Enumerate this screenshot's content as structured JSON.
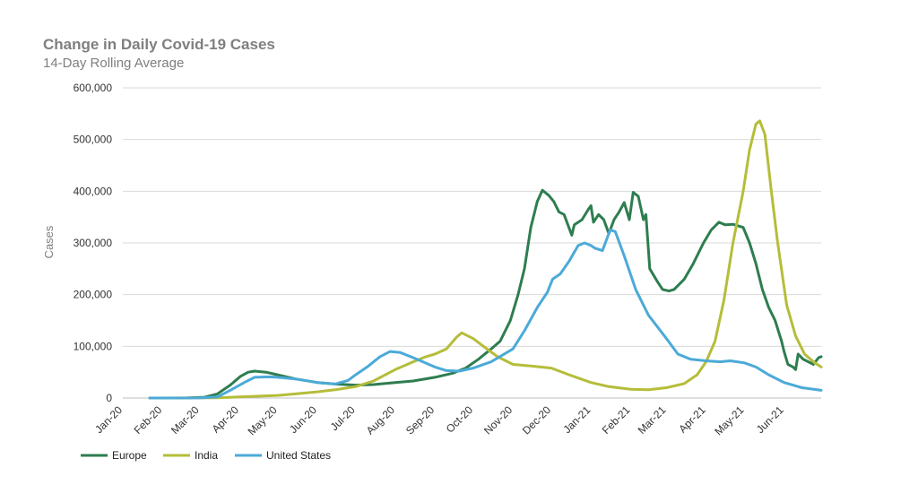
{
  "chart_data": {
    "type": "line",
    "title": "Change in Daily Covid-19 Cases",
    "subtitle": "14-Day Rolling Average",
    "xlabel": "",
    "ylabel": "Cases",
    "ylim": [
      0,
      600000
    ],
    "yticks": [
      0,
      100000,
      200000,
      300000,
      400000,
      500000,
      600000
    ],
    "ytick_labels": [
      "0",
      "100,000",
      "200,000",
      "300,000",
      "400,000",
      "500,000",
      "600,000"
    ],
    "xticks": [
      "2020-01-01",
      "2020-02-01",
      "2020-03-01",
      "2020-04-01",
      "2020-05-01",
      "2020-06-01",
      "2020-07-01",
      "2020-08-01",
      "2020-09-01",
      "2020-10-01",
      "2020-11-01",
      "2020-12-01",
      "2021-01-01",
      "2021-02-01",
      "2021-03-01",
      "2021-04-01",
      "2021-05-01",
      "2021-06-01"
    ],
    "xtick_labels": [
      "Jan-20",
      "Feb-20",
      "Mar-20",
      "Apr-20",
      "May-20",
      "Jun-20",
      "Jul-20",
      "Aug-20",
      "Sep-20",
      "Oct-20",
      "Nov-20",
      "Dec-20",
      "Jan-21",
      "Feb-21",
      "Mar-21",
      "Apr-21",
      "May-21",
      "Jun-21"
    ],
    "xlim": [
      "2020-01-01",
      "2021-06-30"
    ],
    "grid": true,
    "legend_position": "bottom-left",
    "series": [
      {
        "name": "Europe",
        "color": "#2e7d4f",
        "points": [
          [
            "2020-01-22",
            0
          ],
          [
            "2020-02-20",
            200
          ],
          [
            "2020-03-05",
            1500
          ],
          [
            "2020-03-15",
            8000
          ],
          [
            "2020-03-25",
            25000
          ],
          [
            "2020-04-02",
            42000
          ],
          [
            "2020-04-08",
            50000
          ],
          [
            "2020-04-13",
            52000
          ],
          [
            "2020-04-22",
            50000
          ],
          [
            "2020-05-01",
            45000
          ],
          [
            "2020-05-15",
            37000
          ],
          [
            "2020-06-01",
            30000
          ],
          [
            "2020-06-15",
            27000
          ],
          [
            "2020-07-01",
            25000
          ],
          [
            "2020-07-15",
            26000
          ],
          [
            "2020-08-01",
            30000
          ],
          [
            "2020-08-15",
            33000
          ],
          [
            "2020-09-01",
            40000
          ],
          [
            "2020-09-15",
            48000
          ],
          [
            "2020-09-25",
            58000
          ],
          [
            "2020-10-05",
            75000
          ],
          [
            "2020-10-15",
            95000
          ],
          [
            "2020-10-22",
            110000
          ],
          [
            "2020-10-30",
            150000
          ],
          [
            "2020-11-05",
            200000
          ],
          [
            "2020-11-10",
            250000
          ],
          [
            "2020-11-15",
            330000
          ],
          [
            "2020-11-20",
            380000
          ],
          [
            "2020-11-24",
            402000
          ],
          [
            "2020-11-29",
            392000
          ],
          [
            "2020-12-03",
            380000
          ],
          [
            "2020-12-07",
            360000
          ],
          [
            "2020-12-11",
            355000
          ],
          [
            "2020-12-17",
            315000
          ],
          [
            "2020-12-19",
            335000
          ],
          [
            "2020-12-25",
            345000
          ],
          [
            "2020-12-30",
            365000
          ],
          [
            "2021-01-01",
            372000
          ],
          [
            "2021-01-03",
            340000
          ],
          [
            "2021-01-07",
            355000
          ],
          [
            "2021-01-11",
            345000
          ],
          [
            "2021-01-15",
            318000
          ],
          [
            "2021-01-19",
            345000
          ],
          [
            "2021-01-23",
            360000
          ],
          [
            "2021-01-27",
            378000
          ],
          [
            "2021-01-31",
            345000
          ],
          [
            "2021-02-03",
            398000
          ],
          [
            "2021-02-07",
            390000
          ],
          [
            "2021-02-11",
            345000
          ],
          [
            "2021-02-13",
            355000
          ],
          [
            "2021-02-16",
            250000
          ],
          [
            "2021-02-22",
            225000
          ],
          [
            "2021-02-26",
            210000
          ],
          [
            "2021-03-03",
            207000
          ],
          [
            "2021-03-07",
            210000
          ],
          [
            "2021-03-15",
            230000
          ],
          [
            "2021-03-22",
            260000
          ],
          [
            "2021-03-30",
            300000
          ],
          [
            "2021-04-05",
            325000
          ],
          [
            "2021-04-11",
            340000
          ],
          [
            "2021-04-16",
            335000
          ],
          [
            "2021-04-22",
            336000
          ],
          [
            "2021-04-30",
            330000
          ],
          [
            "2021-05-05",
            300000
          ],
          [
            "2021-05-10",
            260000
          ],
          [
            "2021-05-15",
            210000
          ],
          [
            "2021-05-20",
            175000
          ],
          [
            "2021-05-25",
            150000
          ],
          [
            "2021-05-30",
            110000
          ],
          [
            "2021-06-01",
            90000
          ],
          [
            "2021-06-04",
            65000
          ],
          [
            "2021-06-08",
            60000
          ],
          [
            "2021-06-10",
            55000
          ],
          [
            "2021-06-12",
            85000
          ],
          [
            "2021-06-16",
            75000
          ],
          [
            "2021-06-20",
            70000
          ],
          [
            "2021-06-24",
            65000
          ],
          [
            "2021-06-28",
            78000
          ],
          [
            "2021-06-30",
            80000
          ]
        ]
      },
      {
        "name": "India",
        "color": "#b5bd3a",
        "points": [
          [
            "2020-01-22",
            0
          ],
          [
            "2020-03-15",
            300
          ],
          [
            "2020-04-01",
            2000
          ],
          [
            "2020-05-01",
            5000
          ],
          [
            "2020-05-15",
            8000
          ],
          [
            "2020-06-01",
            12000
          ],
          [
            "2020-06-15",
            16000
          ],
          [
            "2020-07-01",
            22000
          ],
          [
            "2020-07-15",
            33000
          ],
          [
            "2020-08-01",
            55000
          ],
          [
            "2020-08-15",
            70000
          ],
          [
            "2020-08-25",
            80000
          ],
          [
            "2020-09-01",
            85000
          ],
          [
            "2020-09-10",
            95000
          ],
          [
            "2020-09-18",
            118000
          ],
          [
            "2020-09-22",
            126000
          ],
          [
            "2020-10-01",
            115000
          ],
          [
            "2020-10-10",
            98000
          ],
          [
            "2020-10-20",
            80000
          ],
          [
            "2020-11-01",
            65000
          ],
          [
            "2020-11-15",
            62000
          ],
          [
            "2020-12-01",
            58000
          ],
          [
            "2020-12-15",
            45000
          ],
          [
            "2021-01-01",
            30000
          ],
          [
            "2021-01-15",
            22000
          ],
          [
            "2021-02-01",
            17000
          ],
          [
            "2021-02-15",
            16000
          ],
          [
            "2021-03-01",
            20000
          ],
          [
            "2021-03-15",
            28000
          ],
          [
            "2021-03-25",
            45000
          ],
          [
            "2021-04-01",
            70000
          ],
          [
            "2021-04-08",
            110000
          ],
          [
            "2021-04-15",
            190000
          ],
          [
            "2021-04-22",
            300000
          ],
          [
            "2021-04-30",
            400000
          ],
          [
            "2021-05-05",
            480000
          ],
          [
            "2021-05-10",
            530000
          ],
          [
            "2021-05-13",
            536000
          ],
          [
            "2021-05-17",
            510000
          ],
          [
            "2021-05-22",
            400000
          ],
          [
            "2021-05-27",
            300000
          ],
          [
            "2021-06-03",
            180000
          ],
          [
            "2021-06-10",
            120000
          ],
          [
            "2021-06-17",
            85000
          ],
          [
            "2021-06-24",
            70000
          ],
          [
            "2021-06-30",
            60000
          ]
        ]
      },
      {
        "name": "United States",
        "color": "#4baad8",
        "points": [
          [
            "2020-01-22",
            0
          ],
          [
            "2020-03-01",
            100
          ],
          [
            "2020-03-15",
            2000
          ],
          [
            "2020-03-25",
            15000
          ],
          [
            "2020-04-05",
            30000
          ],
          [
            "2020-04-13",
            40000
          ],
          [
            "2020-04-25",
            41000
          ],
          [
            "2020-05-01",
            40000
          ],
          [
            "2020-05-15",
            37000
          ],
          [
            "2020-06-01",
            30000
          ],
          [
            "2020-06-15",
            27000
          ],
          [
            "2020-06-25",
            34000
          ],
          [
            "2020-07-01",
            45000
          ],
          [
            "2020-07-10",
            60000
          ],
          [
            "2020-07-20",
            80000
          ],
          [
            "2020-07-28",
            90000
          ],
          [
            "2020-08-05",
            88000
          ],
          [
            "2020-08-15",
            78000
          ],
          [
            "2020-09-01",
            60000
          ],
          [
            "2020-09-10",
            53000
          ],
          [
            "2020-09-20",
            52000
          ],
          [
            "2020-10-01",
            58000
          ],
          [
            "2020-10-15",
            70000
          ],
          [
            "2020-11-01",
            95000
          ],
          [
            "2020-11-10",
            130000
          ],
          [
            "2020-11-20",
            175000
          ],
          [
            "2020-11-28",
            205000
          ],
          [
            "2020-12-02",
            230000
          ],
          [
            "2020-12-08",
            240000
          ],
          [
            "2020-12-15",
            265000
          ],
          [
            "2020-12-22",
            295000
          ],
          [
            "2020-12-27",
            300000
          ],
          [
            "2021-01-01",
            295000
          ],
          [
            "2021-01-04",
            290000
          ],
          [
            "2021-01-10",
            285000
          ],
          [
            "2021-01-16",
            325000
          ],
          [
            "2021-01-20",
            322000
          ],
          [
            "2021-01-27",
            275000
          ],
          [
            "2021-02-05",
            210000
          ],
          [
            "2021-02-15",
            160000
          ],
          [
            "2021-03-01",
            115000
          ],
          [
            "2021-03-10",
            85000
          ],
          [
            "2021-03-20",
            75000
          ],
          [
            "2021-04-01",
            72000
          ],
          [
            "2021-04-12",
            70000
          ],
          [
            "2021-04-20",
            72000
          ],
          [
            "2021-05-01",
            68000
          ],
          [
            "2021-05-10",
            60000
          ],
          [
            "2021-05-20",
            45000
          ],
          [
            "2021-06-01",
            30000
          ],
          [
            "2021-06-15",
            20000
          ],
          [
            "2021-06-30",
            15000
          ]
        ]
      }
    ]
  }
}
